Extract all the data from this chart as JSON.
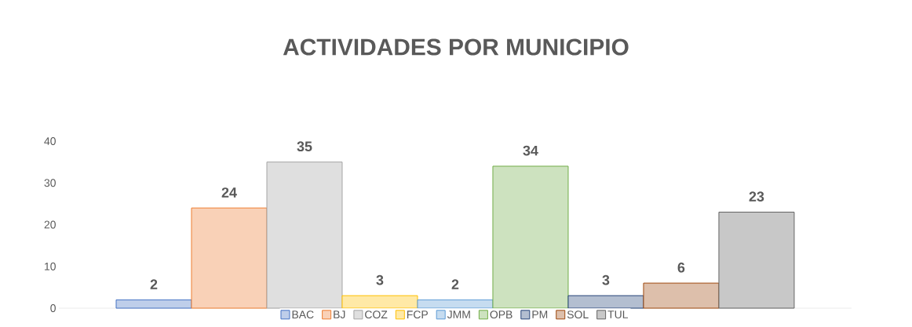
{
  "chart_data": {
    "type": "bar",
    "title": "ACTIVIDADES POR MUNICIPIO",
    "categories": [
      null
    ],
    "series": [
      {
        "name": "BAC",
        "color": "#4472c4",
        "values": [
          2
        ]
      },
      {
        "name": "BJ",
        "color": "#ed7d31",
        "values": [
          24
        ]
      },
      {
        "name": "COZ",
        "color": "#a5a5a5",
        "values": [
          35
        ]
      },
      {
        "name": "FCP",
        "color": "#ffc000",
        "values": [
          3
        ]
      },
      {
        "name": "JMM",
        "color": "#5b9bd5",
        "values": [
          2
        ]
      },
      {
        "name": "OPB",
        "color": "#70ad47",
        "values": [
          34
        ]
      },
      {
        "name": "PM",
        "color": "#264478",
        "values": [
          3
        ]
      },
      {
        "name": "SOL",
        "color": "#9e480e",
        "values": [
          6
        ]
      },
      {
        "name": "TUL",
        "color": "#636363",
        "values": [
          23
        ]
      }
    ],
    "ylim": [
      0,
      40
    ],
    "yticks": [
      0,
      10,
      20,
      30,
      40
    ],
    "data_labels": true,
    "legend": "bottom",
    "grid": false
  }
}
